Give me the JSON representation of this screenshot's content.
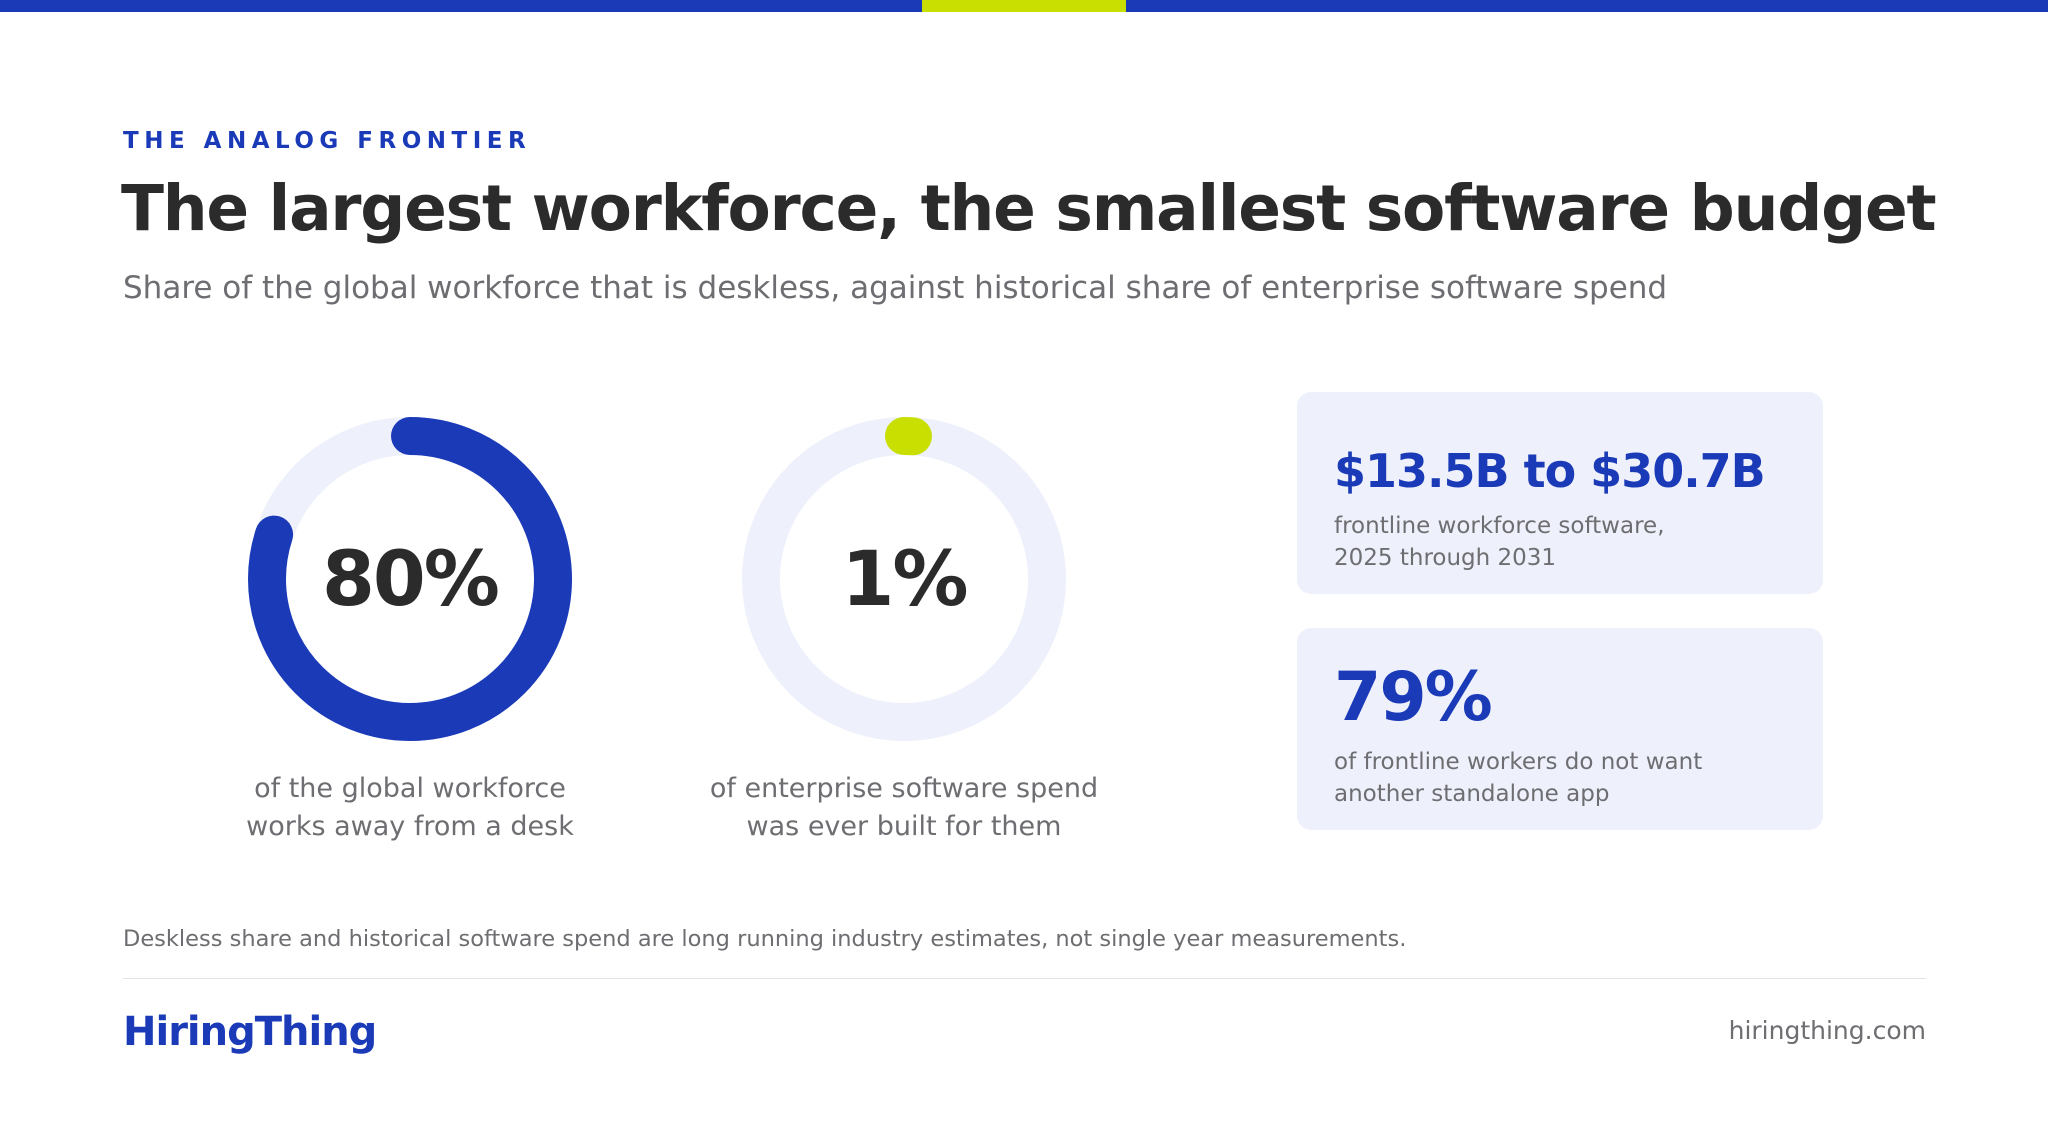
{
  "colors": {
    "brand_blue": "#1a3ab8",
    "accent_lime": "#c9df02",
    "track": "#eef1fb",
    "card_bg": "#eef1fb",
    "heading_text": "#2b2b2b",
    "muted_text": "#6e6e72"
  },
  "header": {
    "eyebrow": "THE ANALOG FRONTIER",
    "title": "The largest workforce, the smallest software budget",
    "subtitle": "Share of the global workforce that is deskless, against historical share of enterprise software spend"
  },
  "stats": [
    {
      "value_text": "80%",
      "percent": 80,
      "color": "#1a3ab8",
      "caption": [
        "of the global workforce",
        "works away from a desk"
      ]
    },
    {
      "value_text": "1%",
      "percent": 1,
      "color": "#c9df02",
      "caption": [
        "of enterprise software spend",
        "was ever built for them"
      ]
    }
  ],
  "cards": [
    {
      "figure": "$13.5B to $30.7B",
      "description": [
        "frontline workforce software,",
        "2025 through 2031"
      ]
    },
    {
      "figure": "79%",
      "description": [
        "of frontline workers do not want",
        "another standalone app"
      ]
    }
  ],
  "footer": {
    "note": "Deskless share and historical software spend are long running industry estimates, not single year measurements.",
    "logo_text": "HiringThing",
    "website": "hiringthing.com"
  }
}
